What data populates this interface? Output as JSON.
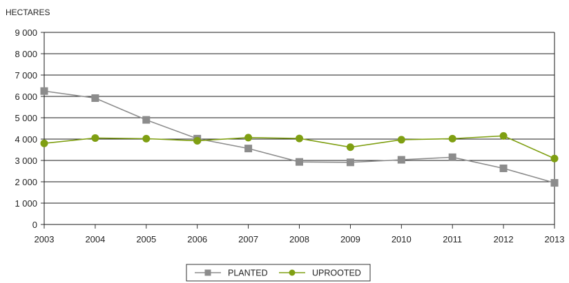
{
  "chart_data": {
    "type": "line",
    "y_unit_label": "HECTARES",
    "categories": [
      "2003",
      "2004",
      "2005",
      "2006",
      "2007",
      "2008",
      "2009",
      "2010",
      "2011",
      "2012",
      "2013"
    ],
    "y_ticks": [
      "0",
      "1 000",
      "2 000",
      "3 000",
      "4 000",
      "5 000",
      "6 000",
      "7 000",
      "8 000",
      "9 000"
    ],
    "ylim": [
      0,
      9000
    ],
    "grid": "horizontal",
    "legend_position": "bottom",
    "series": [
      {
        "name": "PLANTED",
        "color": "#8c8c8c",
        "marker": "square",
        "values": [
          6250,
          5920,
          4900,
          4020,
          3560,
          2930,
          2910,
          3030,
          3150,
          2630,
          1950
        ]
      },
      {
        "name": "UPROOTED",
        "color": "#7f9f12",
        "marker": "circle",
        "values": [
          3800,
          4050,
          4020,
          3920,
          4070,
          4030,
          3620,
          3970,
          4020,
          4150,
          3090
        ]
      }
    ]
  }
}
